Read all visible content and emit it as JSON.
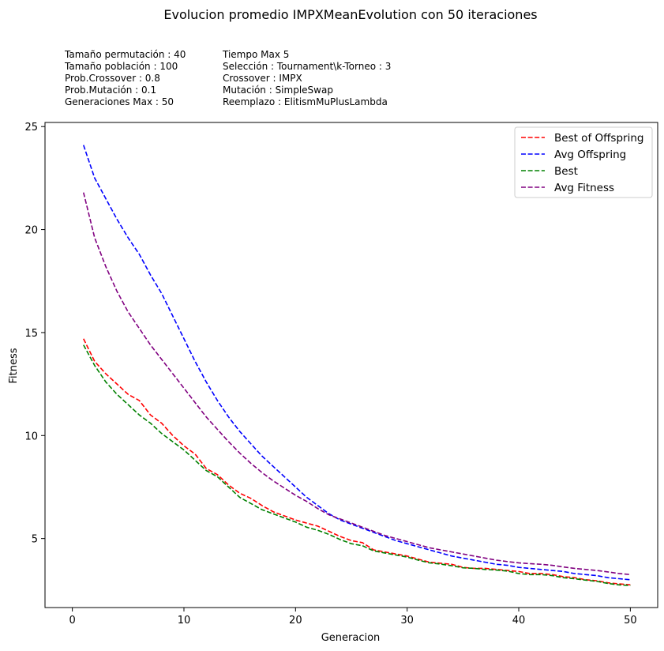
{
  "chart_data": {
    "type": "line",
    "title": "Evolucion promedio IMPXMeanEvolution con 50 iteraciones",
    "info_left": [
      "Tamaño permutación : 40",
      "Tamaño población : 100",
      "Prob.Crossover : 0.8",
      "Prob.Mutación : 0.1",
      "Generaciones Max : 50"
    ],
    "info_right": [
      "Tiempo Max 5",
      "Selección : Tournament\\k-Torneo : 3",
      "Crossover : IMPX",
      "Mutación : SimpleSwap",
      "Reemplazo : ElitismMuPlusLambda"
    ],
    "xlabel": "Generacion",
    "ylabel": "Fitness",
    "xlim": [
      -2.45,
      52.45
    ],
    "ylim": [
      1.65,
      25.2
    ],
    "xticks": [
      0,
      10,
      20,
      30,
      40,
      50
    ],
    "yticks": [
      5,
      10,
      15,
      20,
      25
    ],
    "grid": false,
    "legend_position": "top-right",
    "line_style": "dashed",
    "x": [
      1,
      2,
      3,
      4,
      5,
      6,
      7,
      8,
      9,
      10,
      11,
      12,
      13,
      14,
      15,
      16,
      17,
      18,
      19,
      20,
      21,
      22,
      23,
      24,
      25,
      26,
      27,
      28,
      29,
      30,
      31,
      32,
      33,
      34,
      35,
      36,
      37,
      38,
      39,
      40,
      41,
      42,
      43,
      44,
      45,
      46,
      47,
      48,
      49,
      50
    ],
    "series": [
      {
        "name": "Best of Offspring",
        "color": "#ff0000",
        "values": [
          14.7,
          13.6,
          13.0,
          12.5,
          12.0,
          11.7,
          11.0,
          10.6,
          10.0,
          9.5,
          9.1,
          8.4,
          8.1,
          7.6,
          7.2,
          6.95,
          6.6,
          6.3,
          6.1,
          5.9,
          5.75,
          5.6,
          5.35,
          5.1,
          4.9,
          4.8,
          4.45,
          4.35,
          4.25,
          4.15,
          4.0,
          3.85,
          3.8,
          3.75,
          3.6,
          3.55,
          3.55,
          3.5,
          3.45,
          3.4,
          3.3,
          3.3,
          3.25,
          3.15,
          3.1,
          3.0,
          2.95,
          2.85,
          2.8,
          2.75
        ]
      },
      {
        "name": "Avg Offspring",
        "color": "#0000ff",
        "values": [
          24.1,
          22.5,
          21.5,
          20.5,
          19.6,
          18.8,
          17.8,
          16.9,
          15.8,
          14.7,
          13.6,
          12.6,
          11.7,
          10.9,
          10.2,
          9.6,
          9.0,
          8.5,
          8.0,
          7.5,
          7.0,
          6.6,
          6.2,
          5.9,
          5.7,
          5.5,
          5.3,
          5.1,
          4.9,
          4.75,
          4.6,
          4.45,
          4.3,
          4.15,
          4.05,
          3.95,
          3.85,
          3.75,
          3.7,
          3.6,
          3.55,
          3.5,
          3.45,
          3.4,
          3.3,
          3.25,
          3.2,
          3.1,
          3.05,
          3.0
        ]
      },
      {
        "name": "Best",
        "color": "#008000",
        "values": [
          14.4,
          13.4,
          12.6,
          12.0,
          11.5,
          11.0,
          10.6,
          10.1,
          9.7,
          9.3,
          8.8,
          8.3,
          8.0,
          7.5,
          7.0,
          6.7,
          6.4,
          6.2,
          6.0,
          5.8,
          5.55,
          5.4,
          5.2,
          4.95,
          4.75,
          4.65,
          4.4,
          4.3,
          4.2,
          4.1,
          3.95,
          3.82,
          3.76,
          3.68,
          3.58,
          3.55,
          3.5,
          3.47,
          3.42,
          3.3,
          3.25,
          3.25,
          3.2,
          3.1,
          3.05,
          2.98,
          2.92,
          2.82,
          2.75,
          2.72
        ]
      },
      {
        "name": "Avg Fitness",
        "color": "#800080",
        "values": [
          21.8,
          19.6,
          18.2,
          17.0,
          16.0,
          15.2,
          14.4,
          13.7,
          13.0,
          12.3,
          11.6,
          10.9,
          10.3,
          9.7,
          9.15,
          8.65,
          8.2,
          7.8,
          7.45,
          7.1,
          6.8,
          6.45,
          6.15,
          5.95,
          5.75,
          5.55,
          5.35,
          5.15,
          5.0,
          4.85,
          4.7,
          4.55,
          4.45,
          4.35,
          4.25,
          4.15,
          4.05,
          3.95,
          3.88,
          3.82,
          3.78,
          3.75,
          3.7,
          3.62,
          3.55,
          3.5,
          3.45,
          3.38,
          3.3,
          3.25
        ]
      }
    ]
  }
}
